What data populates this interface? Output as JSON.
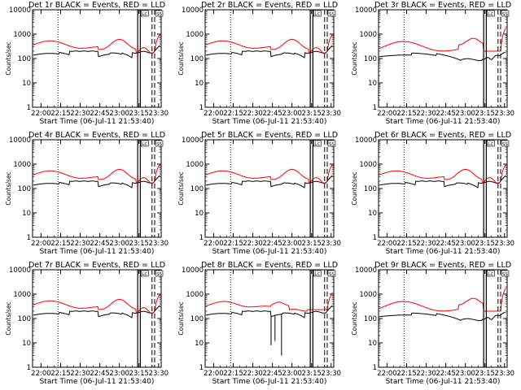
{
  "chart_data": [
    {
      "type": "line",
      "title": "Det 1r BLACK = Events, RED = LLD",
      "xlabel": "Start Time (06-Jul-11 21:53:40)",
      "ylabel": "Counts/sec",
      "x_ticks": [
        "22:00",
        "22:15",
        "22:30",
        "22:45",
        "23:00",
        "23:15",
        "23:30"
      ],
      "y_ticks": [
        "1",
        "10",
        "100",
        "1000",
        "10000"
      ],
      "ylim": [
        1,
        10000
      ],
      "y_scale": "log",
      "x_unit": "minutes after 22:00",
      "black_profile": "std",
      "red_profile": "std",
      "dips": [],
      "series": [
        {
          "name": "Events",
          "color": "#000000"
        },
        {
          "name": "LLD",
          "color": "#ff0000"
        }
      ],
      "box_labels": [
        "LC",
        "SS"
      ]
    },
    {
      "type": "line",
      "title": "Det 2r BLACK = Events, RED = LLD",
      "xlabel": "Start Time (06-Jul-11 21:53:40)",
      "ylabel": "Counts/sec",
      "x_ticks": [
        "22:00",
        "22:15",
        "22:30",
        "22:45",
        "23:00",
        "23:15",
        "23:30"
      ],
      "y_ticks": [
        "1",
        "10",
        "100",
        "1000",
        "10000"
      ],
      "ylim": [
        1,
        10000
      ],
      "y_scale": "log",
      "x_unit": "minutes after 22:00",
      "black_profile": "std",
      "red_profile": "std",
      "dips": [],
      "series": [
        {
          "name": "Events",
          "color": "#000000"
        },
        {
          "name": "LLD",
          "color": "#ff0000"
        }
      ],
      "box_labels": [
        "LC",
        "SS"
      ]
    },
    {
      "type": "line",
      "title": "Det 3r BLACK = Events, RED = LLD",
      "xlabel": "Start Time (06-Jul-11 21:53:40)",
      "ylabel": "Counts/sec",
      "x_ticks": [
        "22:00",
        "22:15",
        "22:30",
        "22:45",
        "23:00",
        "23:15",
        "23:30"
      ],
      "y_ticks": [
        "1",
        "10",
        "100",
        "1000",
        "10000"
      ],
      "ylim": [
        1,
        10000
      ],
      "y_scale": "log",
      "x_unit": "minutes after 22:00",
      "black_profile": "high",
      "red_profile": "high",
      "dips": [],
      "series": [
        {
          "name": "Events",
          "color": "#000000"
        },
        {
          "name": "LLD",
          "color": "#ff0000"
        }
      ],
      "box_labels": [
        "LC",
        "SS"
      ]
    },
    {
      "type": "line",
      "title": "Det 4r BLACK = Events, RED = LLD",
      "xlabel": "Start Time (06-Jul-11 21:53:40)",
      "ylabel": "Counts/sec",
      "x_ticks": [
        "22:00",
        "22:15",
        "22:30",
        "22:45",
        "23:00",
        "23:15",
        "23:30"
      ],
      "y_ticks": [
        "1",
        "10",
        "100",
        "1000",
        "10000"
      ],
      "ylim": [
        1,
        10000
      ],
      "y_scale": "log",
      "x_unit": "minutes after 22:00",
      "black_profile": "std",
      "red_profile": "std",
      "dips": [],
      "series": [
        {
          "name": "Events",
          "color": "#000000"
        },
        {
          "name": "LLD",
          "color": "#ff0000"
        }
      ],
      "box_labels": [
        "LC",
        "SS"
      ]
    },
    {
      "type": "line",
      "title": "Det 5r BLACK = Events, RED = LLD",
      "xlabel": "Start Time (06-Jul-11 21:53:40)",
      "ylabel": "Counts/sec",
      "x_ticks": [
        "22:00",
        "22:15",
        "22:30",
        "22:45",
        "23:00",
        "23:15",
        "23:30"
      ],
      "y_ticks": [
        "1",
        "10",
        "100",
        "1000",
        "10000"
      ],
      "ylim": [
        1,
        10000
      ],
      "y_scale": "log",
      "x_unit": "minutes after 22:00",
      "black_profile": "std",
      "red_profile": "std",
      "dips": [],
      "series": [
        {
          "name": "Events",
          "color": "#000000"
        },
        {
          "name": "LLD",
          "color": "#ff0000"
        }
      ],
      "box_labels": [
        "LC",
        "SS"
      ]
    },
    {
      "type": "line",
      "title": "Det 6r BLACK = Events, RED = LLD",
      "xlabel": "Start Time (06-Jul-11 21:53:40)",
      "ylabel": "Counts/sec",
      "x_ticks": [
        "22:00",
        "22:15",
        "22:30",
        "22:45",
        "23:00",
        "23:15",
        "23:30"
      ],
      "y_ticks": [
        "1",
        "10",
        "100",
        "1000",
        "10000"
      ],
      "ylim": [
        1,
        10000
      ],
      "y_scale": "log",
      "x_unit": "minutes after 22:00",
      "black_profile": "std",
      "red_profile": "std",
      "dips": [],
      "series": [
        {
          "name": "Events",
          "color": "#000000"
        },
        {
          "name": "LLD",
          "color": "#ff0000"
        }
      ],
      "box_labels": [
        "LC",
        "SS"
      ]
    },
    {
      "type": "line",
      "title": "Det 7r BLACK = Events, RED = LLD",
      "xlabel": "Start Time (06-Jul-11 21:53:40)",
      "ylabel": "Counts/sec",
      "x_ticks": [
        "22:00",
        "22:15",
        "22:30",
        "22:45",
        "23:00",
        "23:15",
        "23:30"
      ],
      "y_ticks": [
        "1",
        "10",
        "100",
        "1000",
        "10000"
      ],
      "ylim": [
        1,
        10000
      ],
      "y_scale": "log",
      "x_unit": "minutes after 22:00",
      "black_profile": "std",
      "red_profile": "std",
      "dips": [],
      "series": [
        {
          "name": "Events",
          "color": "#000000"
        },
        {
          "name": "LLD",
          "color": "#ff0000"
        }
      ],
      "box_labels": [
        "LC",
        "SS"
      ]
    },
    {
      "type": "line",
      "title": "Det 8r BLACK = Events, RED = LLD",
      "xlabel": "Start Time (06-Jul-11 21:53:40)",
      "ylabel": "Counts/sec",
      "x_ticks": [
        "22:00",
        "22:15",
        "22:30",
        "22:45",
        "23:00",
        "23:15",
        "23:30"
      ],
      "y_ticks": [
        "1",
        "10",
        "100",
        "1000",
        "10000"
      ],
      "ylim": [
        1,
        10000
      ],
      "y_scale": "log",
      "x_unit": "minutes after 22:00",
      "black_profile": "std",
      "red_profile": "det8",
      "dips": [
        {
          "x": 44,
          "y": 8
        },
        {
          "x": 47,
          "y": 12
        },
        {
          "x": 52,
          "y": 3
        }
      ],
      "series": [
        {
          "name": "Events",
          "color": "#000000"
        },
        {
          "name": "LLD",
          "color": "#ff0000"
        }
      ],
      "box_labels": [
        "LC",
        "SS"
      ]
    },
    {
      "type": "line",
      "title": "Det 9r BLACK = Events, RED = LLD",
      "xlabel": "Start Time (06-Jul-11 21:53:40)",
      "ylabel": "Counts/sec",
      "x_ticks": [
        "22:00",
        "22:15",
        "22:30",
        "22:45",
        "23:00",
        "23:15",
        "23:30"
      ],
      "y_ticks": [
        "1",
        "10",
        "100",
        "1000",
        "10000"
      ],
      "ylim": [
        1,
        10000
      ],
      "y_scale": "log",
      "x_unit": "minutes after 22:00",
      "black_profile": "high",
      "red_profile": "high",
      "dips": [],
      "series": [
        {
          "name": "Events",
          "color": "#000000"
        },
        {
          "name": "LLD",
          "color": "#ff0000"
        }
      ],
      "box_labels": [
        "LC",
        "SS"
      ]
    }
  ]
}
